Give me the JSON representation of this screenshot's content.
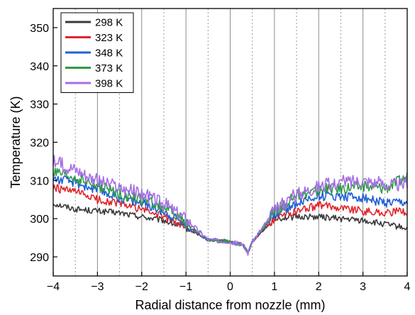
{
  "chart_data": {
    "type": "line",
    "title": "",
    "xlabel": "Radial distance from nozzle (mm)",
    "ylabel": "Temperature (K)",
    "xlim": [
      -4,
      4
    ],
    "ylim": [
      285,
      355
    ],
    "xticks": [
      -4,
      -3,
      -2,
      -1,
      0,
      1,
      2,
      3,
      4
    ],
    "xtick_labels": [
      "−4",
      "−3",
      "−2",
      "−1",
      "0",
      "1",
      "2",
      "3",
      "4"
    ],
    "yticks": [
      290,
      300,
      310,
      320,
      330,
      340,
      350
    ],
    "ytick_labels": [
      "290",
      "300",
      "310",
      "320",
      "330",
      "340",
      "350"
    ],
    "grid": {
      "major_x": "solid",
      "minor_x": "dotted",
      "y": false
    },
    "legend_position": "top-left",
    "x": [
      -4,
      -3.5,
      -3,
      -2.5,
      -2,
      -1.5,
      -1,
      -0.5,
      0,
      0.3,
      0.4,
      0.5,
      1,
      1.5,
      2,
      2.5,
      3,
      3.5,
      4
    ],
    "series": [
      {
        "name": "298 K",
        "color": "#3a3a3a",
        "values": [
          304,
          302.5,
          302,
          301.5,
          300.5,
          299.5,
          297.5,
          294.5,
          294,
          293,
          291,
          294,
          300,
          300.5,
          300.5,
          300,
          299.5,
          298.5,
          297.5
        ]
      },
      {
        "name": "323 K",
        "color": "#e0252b",
        "values": [
          308,
          307,
          305,
          304,
          302.5,
          300.5,
          298,
          294.5,
          294,
          293,
          291,
          294,
          300,
          302,
          303.5,
          303,
          302,
          301.5,
          302
        ]
      },
      {
        "name": "348 K",
        "color": "#1f5fd6",
        "values": [
          310.5,
          309.5,
          307.5,
          305.5,
          304,
          302,
          298.5,
          294.5,
          294,
          293,
          291,
          294,
          301,
          304,
          306,
          306,
          305.5,
          304,
          304
        ]
      },
      {
        "name": "373 K",
        "color": "#2e9a46",
        "values": [
          312,
          310.5,
          308.5,
          306.5,
          305,
          303,
          299,
          294.5,
          294,
          293,
          291,
          294,
          301.5,
          306,
          307.5,
          308,
          308.5,
          308,
          311
        ]
      },
      {
        "name": "398 K",
        "color": "#a66ee6",
        "values": [
          315,
          313,
          310,
          308,
          306.5,
          304,
          300,
          294.5,
          294,
          293,
          291,
          294,
          302,
          306.5,
          308.5,
          309.5,
          310,
          309,
          309
        ]
      }
    ]
  }
}
